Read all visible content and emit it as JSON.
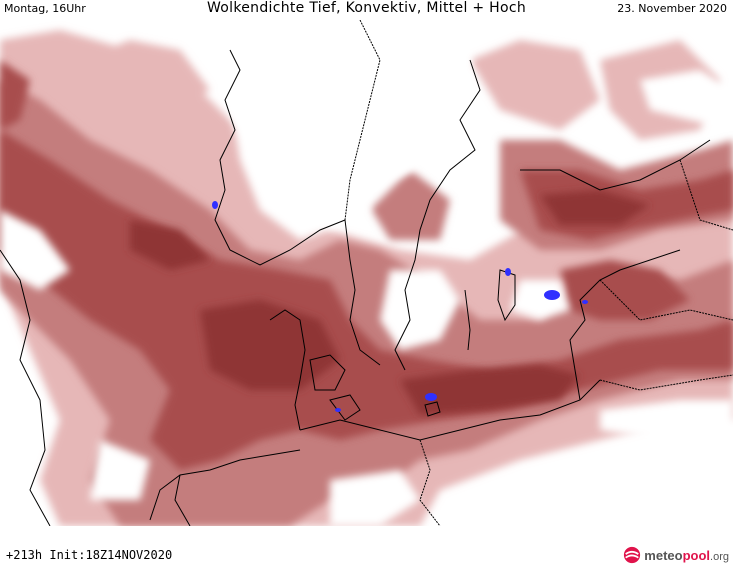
{
  "header": {
    "left_label": "Montag, 16Uhr",
    "title": "Wolkendichte  Tief, Konvektiv, Mittel + Hoch",
    "date": "23. November 2020"
  },
  "footer": {
    "forecast_label": "+213h  Init:18Z14NOV2020",
    "logo": {
      "name": "meteo",
      "accent": "pool",
      "tld": ".org"
    }
  },
  "colors": {
    "cloud_light": "#e6b7b7",
    "cloud_mid": "#c47d7d",
    "cloud_dense": "#a84e4e",
    "cloud_darkest": "#8f3535",
    "convective": "#3030ff",
    "coastline": "#000000",
    "logo_accent": "#e0134b"
  },
  "icons": {
    "logo": "globe-logo-icon"
  }
}
